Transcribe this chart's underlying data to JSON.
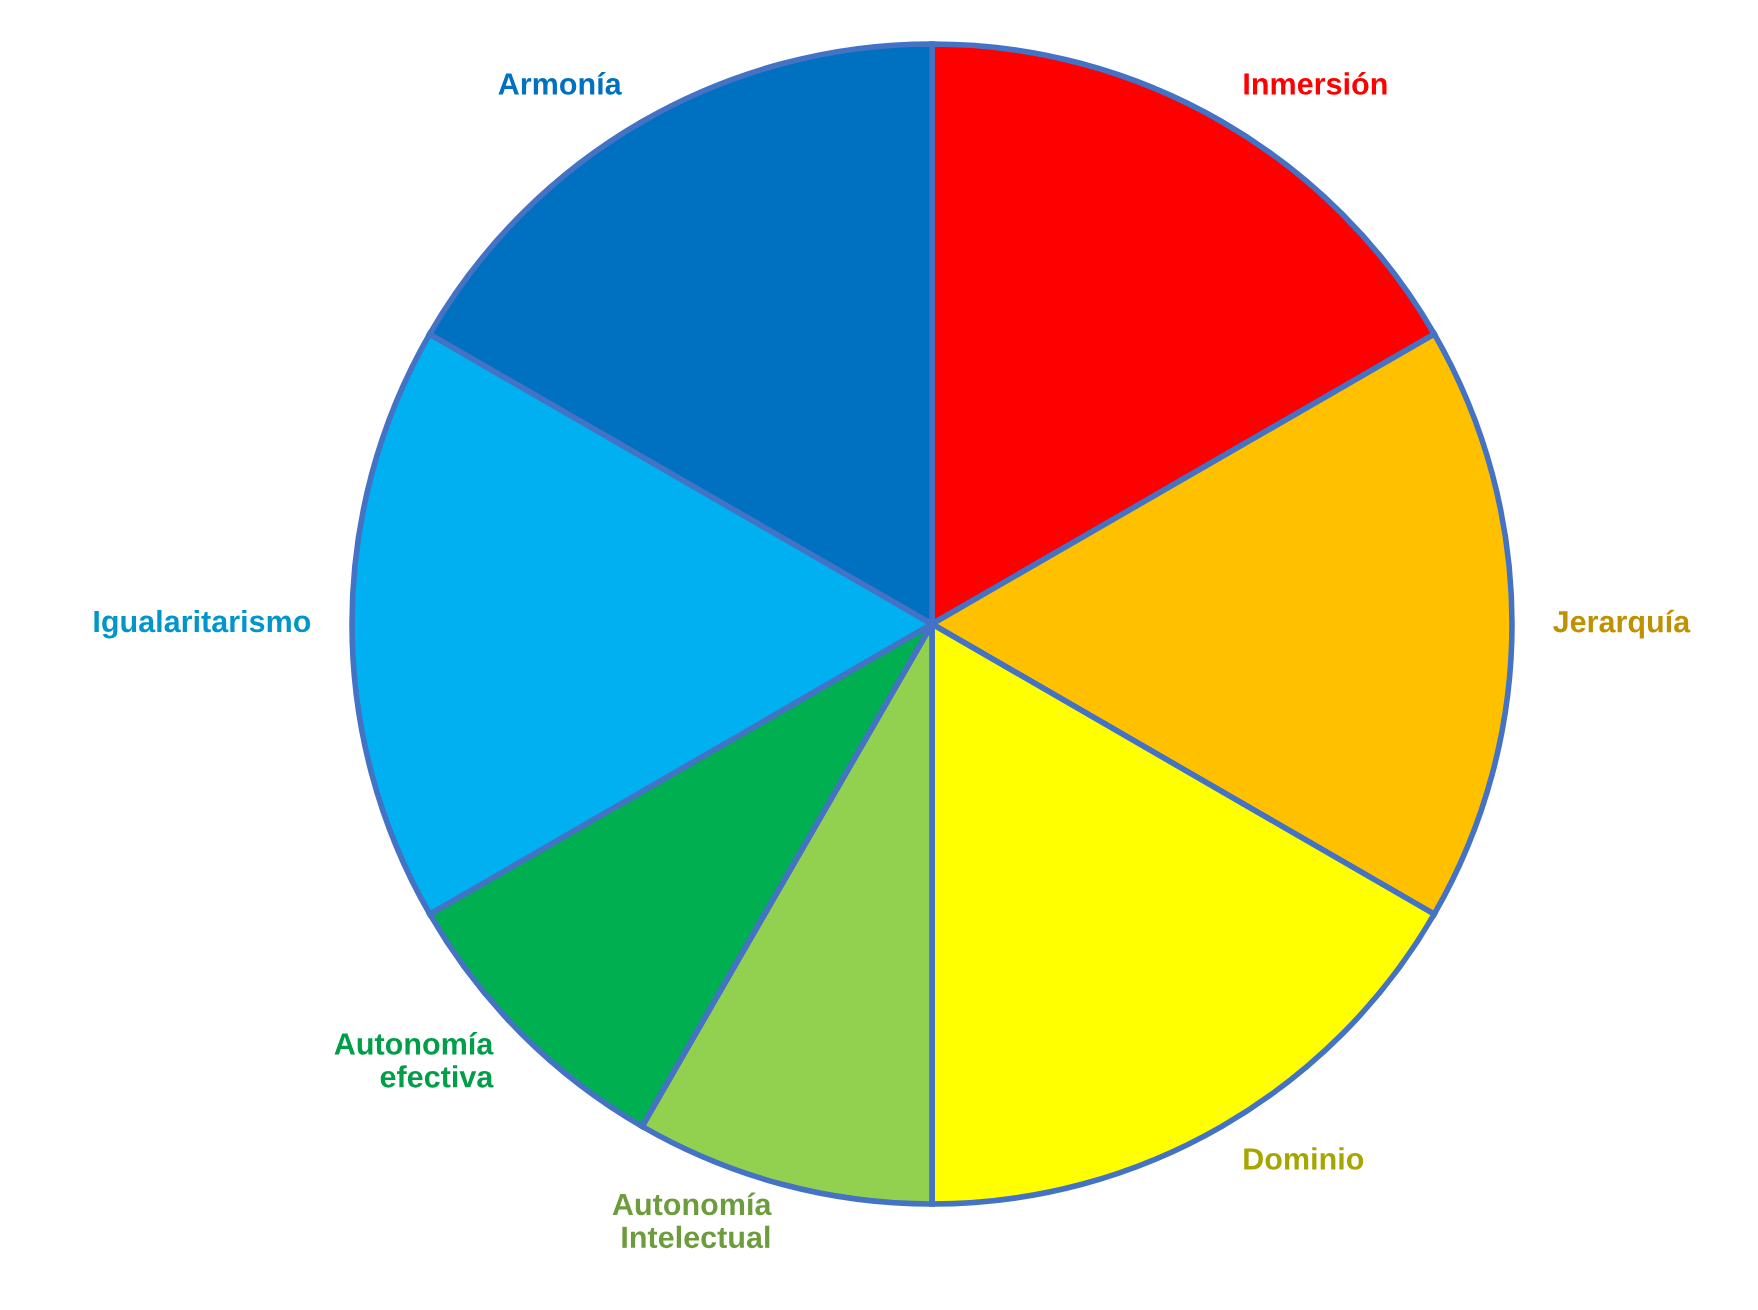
{
  "chart_data": {
    "type": "pie",
    "categories": [
      "Inmersión",
      "Jerarquía",
      "Dominio",
      "Autonomía\nIntelectual",
      "Autonomía\nefectiva",
      "Igualaritarismo",
      "Armonía"
    ],
    "values": [
      16.67,
      16.67,
      16.66,
      8.33,
      8.33,
      16.67,
      16.67
    ],
    "colors": [
      "#ff0000",
      "#ffc000",
      "#ffff00",
      "#92d050",
      "#00b050",
      "#00b0f0",
      "#0070c0"
    ],
    "legend": false
  }
}
